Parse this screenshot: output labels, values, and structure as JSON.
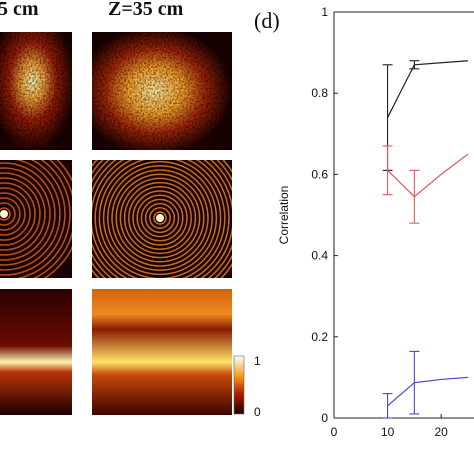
{
  "figure": {
    "left_partial_header": "5 cm",
    "right_header": "Z=35 cm",
    "panel_label": "(d)",
    "colorbar": {
      "max_label": "1",
      "min_label": "0",
      "colormap": "hot"
    }
  },
  "chart_data": {
    "type": "line",
    "title": "",
    "xlabel": "",
    "ylabel": "Correlation",
    "xlim": [
      0,
      28
    ],
    "ylim": [
      0,
      1
    ],
    "xticks": [
      "0",
      "10",
      "20"
    ],
    "yticks": [
      "0",
      "0.2",
      "0.4",
      "0.6",
      "0.8",
      "1"
    ],
    "grid": false,
    "x": [
      10,
      15,
      20,
      25
    ],
    "series": [
      {
        "color": "#222222",
        "values": [
          0.74,
          0.87,
          0.875,
          0.88
        ],
        "err_low": [
          0.13,
          0.01,
          0.0,
          0.0
        ],
        "err_high": [
          0.13,
          0.01,
          0.0,
          0.0
        ]
      },
      {
        "color": "#e05a5a",
        "values": [
          0.61,
          0.545,
          0.6,
          0.65
        ],
        "err_low": [
          0.06,
          0.065,
          0.0,
          0.0
        ],
        "err_high": [
          0.06,
          0.065,
          0.0,
          0.0
        ]
      },
      {
        "color": "#4a4ad0",
        "values": [
          0.03,
          0.087,
          0.095,
          0.1
        ],
        "err_low": [
          0.03,
          0.077,
          0.0,
          0.0
        ],
        "err_high": [
          0.03,
          0.077,
          0.0,
          0.0
        ]
      }
    ]
  }
}
